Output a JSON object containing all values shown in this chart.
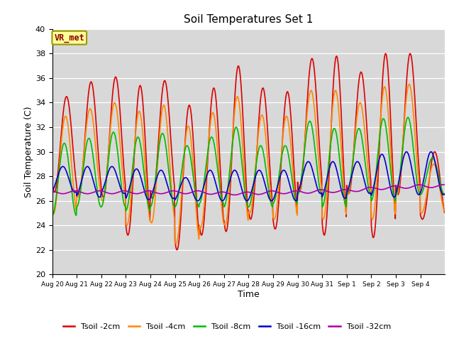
{
  "title": "Soil Temperatures Set 1",
  "xlabel": "Time",
  "ylabel": "Soil Temperature (C)",
  "ylim": [
    20,
    40
  ],
  "xlim_days": 16,
  "annotation": "VR_met",
  "bg_color": "#d8d8d8",
  "line_colors": {
    "2cm": "#dd0000",
    "4cm": "#ff8800",
    "8cm": "#00bb00",
    "16cm": "#0000cc",
    "32cm": "#aa00aa"
  },
  "legend_labels": [
    "Tsoil -2cm",
    "Tsoil -4cm",
    "Tsoil -8cm",
    "Tsoil -16cm",
    "Tsoil -32cm"
  ],
  "tick_labels": [
    "Aug 20",
    "Aug 21",
    "Aug 22",
    "Aug 23",
    "Aug 24",
    "Aug 25",
    "Aug 26",
    "Aug 27",
    "Aug 28",
    "Aug 29",
    "Aug 30",
    "Aug 31",
    "Sep 1",
    "Sep 2",
    "Sep 3",
    "Sep 4"
  ],
  "tsoil_2cm_peaks": [
    34.5,
    35.7,
    36.1,
    35.4,
    35.8,
    33.8,
    35.2,
    37.0,
    35.2,
    34.9,
    37.6,
    37.8,
    36.5,
    38.0,
    38.0,
    30.0
  ],
  "tsoil_2cm_troughs": [
    26.7,
    26.5,
    26.3,
    23.2,
    26.2,
    22.0,
    23.2,
    23.5,
    24.5,
    23.7,
    26.8,
    23.2,
    26.6,
    23.0,
    26.5,
    24.5
  ],
  "tsoil_4cm_peaks": [
    32.9,
    33.5,
    34.0,
    33.3,
    33.8,
    32.1,
    33.2,
    34.5,
    33.0,
    32.9,
    35.0,
    35.0,
    34.0,
    35.3,
    35.5,
    29.0
  ],
  "tsoil_4cm_troughs": [
    24.9,
    26.3,
    26.0,
    24.0,
    24.2,
    22.5,
    23.8,
    24.0,
    25.0,
    24.5,
    26.7,
    24.5,
    26.5,
    24.5,
    26.5,
    25.0
  ],
  "tsoil_8cm_peaks": [
    30.7,
    31.1,
    31.6,
    31.2,
    31.5,
    30.5,
    31.2,
    32.0,
    30.5,
    30.5,
    32.5,
    31.9,
    31.9,
    32.7,
    32.8,
    29.5
  ],
  "tsoil_8cm_troughs": [
    24.8,
    25.5,
    25.5,
    25.2,
    25.5,
    25.5,
    25.8,
    25.5,
    25.5,
    25.8,
    26.5,
    25.5,
    26.5,
    26.0,
    26.5,
    26.5
  ],
  "tsoil_16cm_peaks": [
    28.8,
    28.8,
    28.8,
    28.6,
    28.5,
    27.9,
    28.5,
    28.5,
    28.5,
    28.5,
    29.2,
    29.2,
    29.2,
    29.8,
    30.0,
    30.0
  ],
  "tsoil_16cm_troughs": [
    26.7,
    26.3,
    26.6,
    26.1,
    26.2,
    26.0,
    26.0,
    26.0,
    26.0,
    26.0,
    26.6,
    26.2,
    26.6,
    26.3,
    26.5,
    26.5
  ],
  "tsoil_32cm_base": [
    26.7,
    26.7,
    26.7,
    26.7,
    26.7,
    26.7,
    26.7,
    26.6,
    26.6,
    26.7,
    26.7,
    26.8,
    26.8,
    27.0,
    27.1,
    27.2
  ]
}
